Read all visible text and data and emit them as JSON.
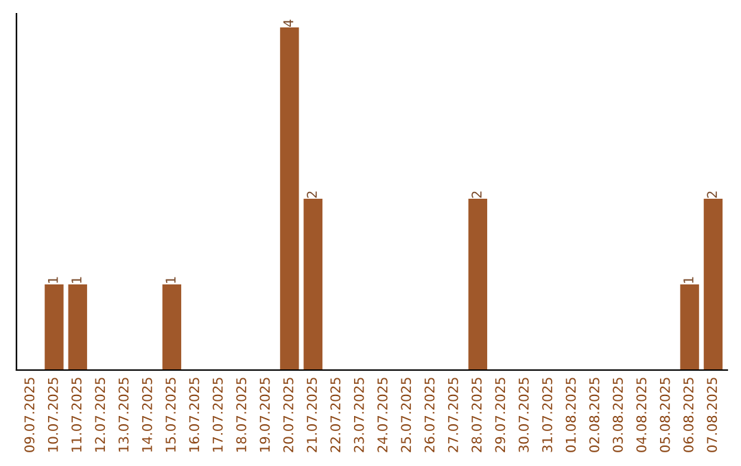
{
  "chart_data": {
    "type": "bar",
    "categories": [
      "09.07.2025",
      "10.07.2025",
      "11.07.2025",
      "12.07.2025",
      "13.07.2025",
      "14.07.2025",
      "15.07.2025",
      "16.07.2025",
      "17.07.2025",
      "18.07.2025",
      "19.07.2025",
      "20.07.2025",
      "21.07.2025",
      "22.07.2025",
      "23.07.2025",
      "24.07.2025",
      "25.07.2025",
      "26.07.2025",
      "27.07.2025",
      "28.07.2025",
      "29.07.2025",
      "30.07.2025",
      "31.07.2025",
      "01.08.2025",
      "02.08.2025",
      "03.08.2025",
      "04.08.2025",
      "05.08.2025",
      "06.08.2025",
      "07.08.2025"
    ],
    "values": [
      0,
      1,
      1,
      0,
      0,
      0,
      1,
      0,
      0,
      0,
      0,
      4,
      2,
      0,
      0,
      0,
      0,
      0,
      0,
      2,
      0,
      0,
      0,
      0,
      0,
      0,
      0,
      0,
      1,
      2
    ],
    "value_labels": [
      null,
      "1",
      "1",
      null,
      null,
      null,
      "1",
      null,
      null,
      null,
      null,
      "4",
      "2",
      null,
      null,
      null,
      null,
      null,
      null,
      "2",
      null,
      null,
      null,
      null,
      null,
      null,
      null,
      null,
      "1",
      "2"
    ],
    "color": "#a0582a",
    "tick_labels": "x",
    "grid": false
  }
}
